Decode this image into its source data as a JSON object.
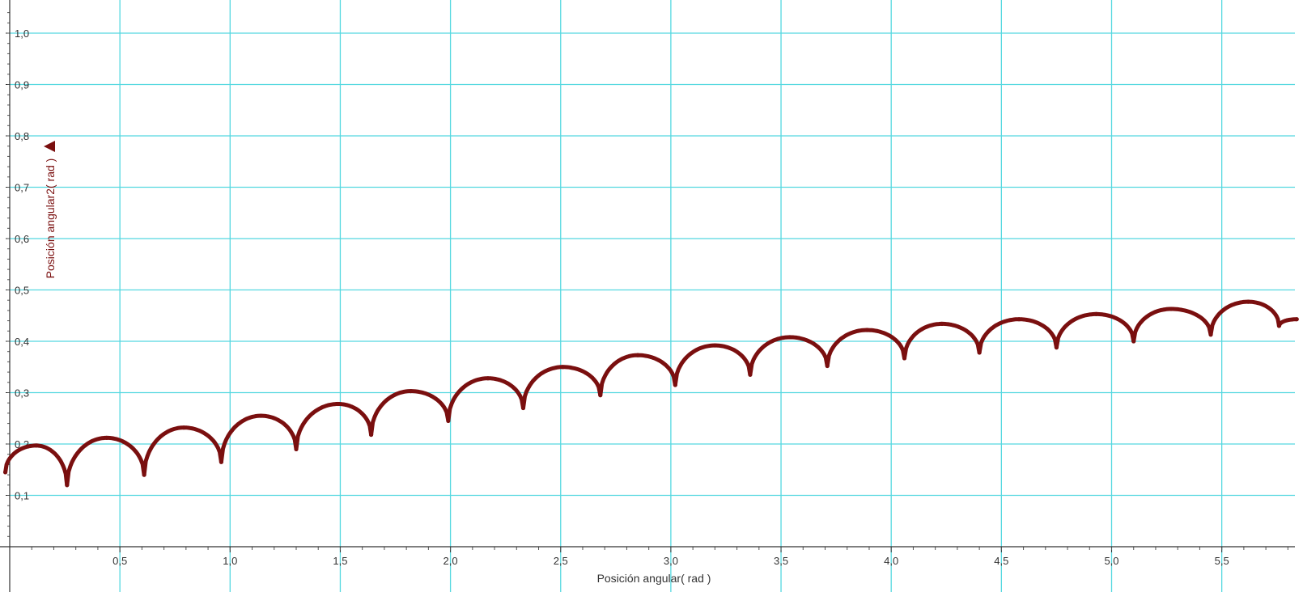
{
  "chart_data": {
    "type": "line",
    "title": "",
    "xlabel": "Posición angular( rad )",
    "ylabel": "Posición angular2( rad )",
    "xlim": [
      -0.02,
      5.84
    ],
    "ylim": [
      -0.02,
      1.05
    ],
    "x_ticks": [
      {
        "value": 0.5,
        "label": "0,5"
      },
      {
        "value": 1.0,
        "label": "1,0"
      },
      {
        "value": 1.5,
        "label": "1,5"
      },
      {
        "value": 2.0,
        "label": "2,0"
      },
      {
        "value": 2.5,
        "label": "2,5"
      },
      {
        "value": 3.0,
        "label": "3,0"
      },
      {
        "value": 3.5,
        "label": "3,5"
      },
      {
        "value": 4.0,
        "label": "4,0"
      },
      {
        "value": 4.5,
        "label": "4,5"
      },
      {
        "value": 5.0,
        "label": "5,0"
      },
      {
        "value": 5.5,
        "label": "5,5"
      }
    ],
    "y_ticks": [
      {
        "value": 0.1,
        "label": "0,1"
      },
      {
        "value": 0.2,
        "label": "0,2"
      },
      {
        "value": 0.3,
        "label": "0,3"
      },
      {
        "value": 0.4,
        "label": "0,4"
      },
      {
        "value": 0.5,
        "label": "0,5"
      },
      {
        "value": 0.6,
        "label": "0,6"
      },
      {
        "value": 0.7,
        "label": "0,7"
      },
      {
        "value": 0.8,
        "label": "0,8"
      },
      {
        "value": 0.9,
        "label": "0,9"
      },
      {
        "value": 1.0,
        "label": "1,0"
      }
    ],
    "grid": true,
    "series_color": "#7a0f0f",
    "grid_color": "#55d8e0",
    "series": [
      {
        "x": [
          -0.02,
          0.12,
          0.26,
          0.44,
          0.61,
          0.79,
          0.96,
          1.14,
          1.3,
          1.49,
          1.64,
          1.82,
          1.99,
          2.17,
          2.33,
          2.51,
          2.68,
          2.85,
          3.02,
          3.2,
          3.36,
          3.54,
          3.71,
          3.89,
          4.06,
          4.23,
          4.4,
          4.58,
          4.75,
          4.93,
          5.1,
          5.27,
          5.45,
          5.62,
          5.76,
          5.84
        ],
        "y": [
          0.145,
          0.197,
          0.12,
          0.212,
          0.14,
          0.232,
          0.165,
          0.255,
          0.19,
          0.278,
          0.218,
          0.303,
          0.245,
          0.328,
          0.27,
          0.35,
          0.295,
          0.373,
          0.315,
          0.392,
          0.335,
          0.408,
          0.352,
          0.422,
          0.367,
          0.434,
          0.378,
          0.443,
          0.388,
          0.453,
          0.4,
          0.463,
          0.413,
          0.477,
          0.43,
          0.443
        ]
      }
    ]
  }
}
